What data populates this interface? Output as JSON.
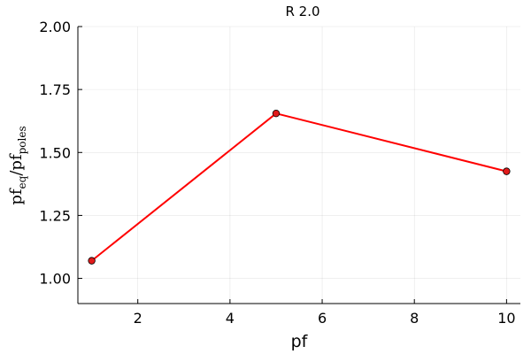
{
  "chart_data": {
    "type": "line",
    "title": "R 2.0",
    "xlabel": "pf",
    "ylabel": {
      "parts": [
        {
          "text": "pf",
          "sub": "eq"
        },
        {
          "text": "/pf",
          "sub": "poles"
        }
      ]
    },
    "xlim": [
      0.7,
      10.3
    ],
    "ylim": [
      0.9,
      2.0
    ],
    "xticks": [
      2,
      4,
      6,
      8,
      10
    ],
    "xtick_labels": [
      "2",
      "4",
      "6",
      "8",
      "10"
    ],
    "yticks": [
      1.0,
      1.25,
      1.5,
      1.75,
      2.0
    ],
    "ytick_labels": [
      "1.00",
      "1.25",
      "1.50",
      "1.75",
      "2.00"
    ],
    "grid": true,
    "legend": "none",
    "series": [
      {
        "name": "y1",
        "color": "#ff0000",
        "marker_color": "#e11b1b",
        "x": [
          1,
          5,
          10
        ],
        "y": [
          1.07,
          1.655,
          1.425
        ]
      }
    ]
  }
}
